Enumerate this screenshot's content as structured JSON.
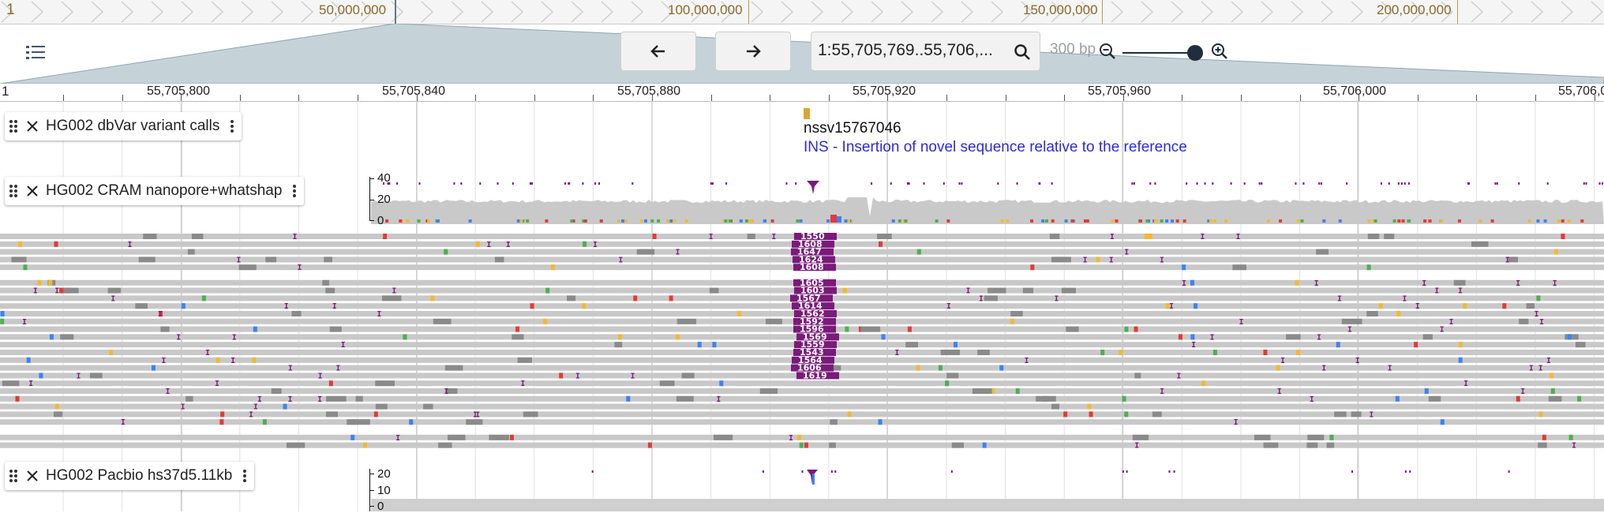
{
  "overview": {
    "start_label": "1",
    "ticks": [
      "50,000,000",
      "100,000,000",
      "150,000,000",
      "200,000,000"
    ]
  },
  "toolbar": {
    "back_icon": "arrow-left-icon",
    "forward_icon": "arrow-right-icon",
    "locstring": "1:55,705,769..55,706,...",
    "search_icon": "search-icon",
    "bp_label": "300 bp",
    "zoom_out_icon": "zoom-out-icon",
    "zoom_in_icon": "zoom-in-icon",
    "zoom_level": 0.9,
    "track_menu_icon": "list-icon"
  },
  "ruler": {
    "start_label": "1",
    "ticks": [
      "55,705,800",
      "55,705,840",
      "55,705,880",
      "55,705,920",
      "55,705,960",
      "55,706,000",
      "55,706,0"
    ]
  },
  "tracks": {
    "dbvar": {
      "name": "HG002 dbVar variant calls",
      "feature_name": "nssv15767046",
      "feature_description": "INS - Insertion of novel sequence relative to the reference"
    },
    "nanopore": {
      "name": "HG002 CRAM nanopore+whatshap",
      "coverage_ticks": [
        "40",
        "20",
        "0"
      ],
      "insertion_labels": [
        "1550",
        "1608",
        "1647",
        "1624",
        "1608",
        "1605",
        "1603",
        "1567",
        "1614",
        "1562",
        "1592",
        "1596",
        "1569",
        "1559",
        "1543",
        "1564",
        "1606",
        "1619"
      ]
    },
    "pacbio": {
      "name": "HG002 Pacbio hs37d5.11kb",
      "coverage_ticks": [
        "20",
        "10",
        "0"
      ]
    }
  },
  "colors": {
    "insertion": "#7a1a7a",
    "read": "#c8c8c8",
    "read_dark": "#8a8a8a",
    "mismatch_a": "#4caf50",
    "mismatch_c": "#3b82f6",
    "mismatch_g": "#f5b82e",
    "mismatch_t": "#e53935",
    "variant": "#d6a832"
  }
}
